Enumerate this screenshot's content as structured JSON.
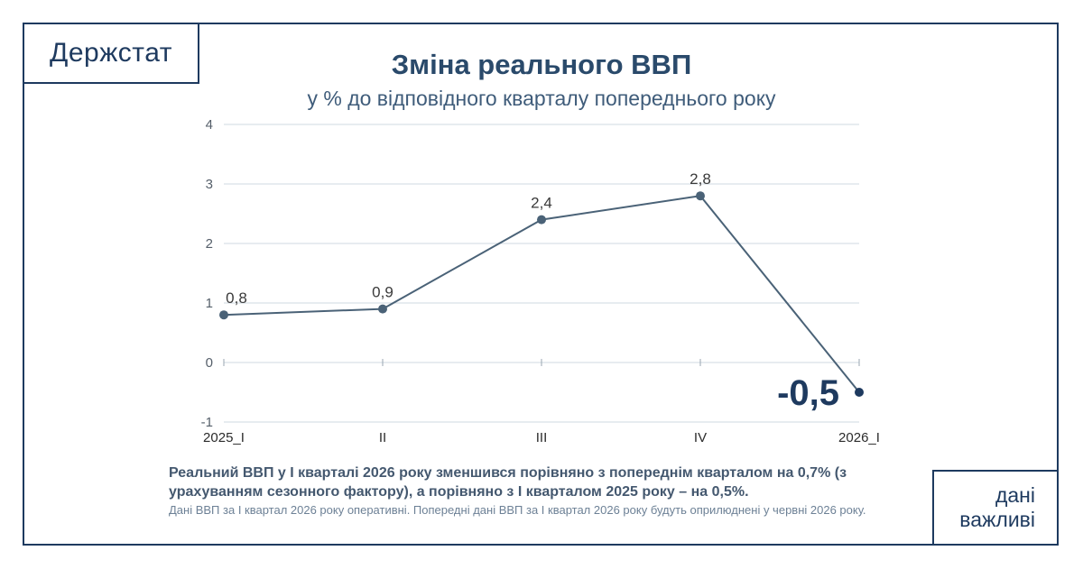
{
  "logo": "Держстат",
  "badge": {
    "line1": "дані",
    "line2": "важливі"
  },
  "note": "Реальний ВВП у І кварталі 2026 року зменшився порівняно з попереднім кварталом на 0,7% (з урахуванням сезонного фактору), а порівняно з І кварталом 2025 року – на 0,5%.",
  "footnote": "Дані ВВП за І квартал 2026 року оперативні. Попередні дані ВВП за І квартал 2026 року будуть оприлюднені у червні 2026 року.",
  "colors": {
    "line": "#4a6277",
    "grid": "#cfd8e0",
    "text": "#1e3a5f"
  },
  "chart_data": {
    "type": "line",
    "title": "Зміна реального ВВП",
    "subtitle": "у % до відповідного кварталу попереднього року",
    "categories": [
      "2025_I",
      "II",
      "III",
      "IV",
      "2026_I"
    ],
    "values": [
      0.8,
      0.9,
      2.4,
      2.8,
      -0.5
    ],
    "data_labels": [
      "0,8",
      "0,9",
      "2,4",
      "2,8",
      "-0,5"
    ],
    "y_ticks": [
      "-1",
      "0",
      "1",
      "2",
      "3",
      "4"
    ],
    "ylim": [
      -1,
      4
    ],
    "grid": true,
    "xlabel": "",
    "ylabel": ""
  }
}
